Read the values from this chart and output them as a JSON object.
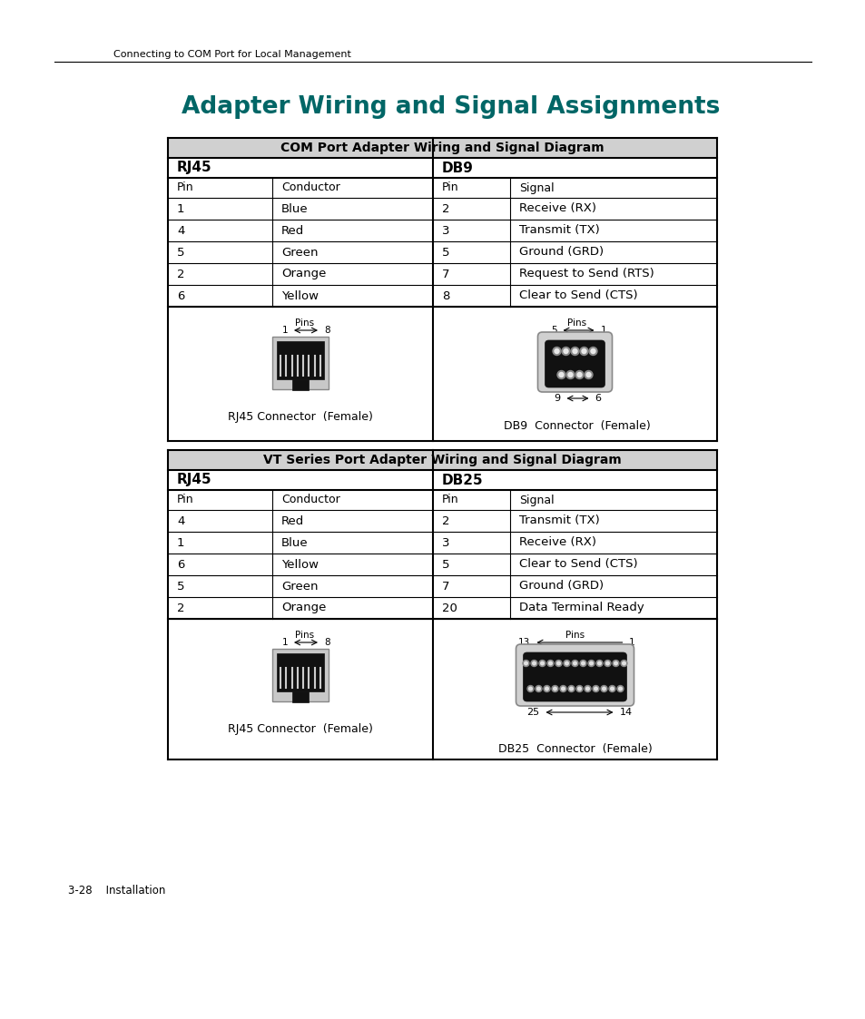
{
  "page_title": "Adapter Wiring and Signal Assignments",
  "header_text": "Connecting to COM Port for Local Management",
  "footer_text": "3-28    Installation",
  "bg_color": "#ffffff",
  "title_color": "#006666",
  "table_header_bg": "#d3d3d3",
  "table1": {
    "header": "COM Port Adapter Wiring and Signal Diagram",
    "rj45_header": "RJ45",
    "db_header": "DB9",
    "col_headers": [
      "Pin",
      "Conductor",
      "Pin",
      "Signal"
    ],
    "rows": [
      [
        "1",
        "Blue",
        "2",
        "Receive (RX)"
      ],
      [
        "4",
        "Red",
        "3",
        "Transmit (TX)"
      ],
      [
        "5",
        "Green",
        "5",
        "Ground (GRD)"
      ],
      [
        "2",
        "Orange",
        "7",
        "Request to Send (RTS)"
      ],
      [
        "6",
        "Yellow",
        "8",
        "Clear to Send (CTS)"
      ]
    ],
    "connector1_label": "RJ45 Connector  (Female)",
    "connector2_label": "DB9  Connector  (Female)",
    "db9_bottom_label": "9 ↔ 6"
  },
  "table2": {
    "header": "VT Series Port Adapter Wiring and Signal Diagram",
    "rj45_header": "RJ45",
    "db_header": "DB25",
    "col_headers": [
      "Pin",
      "Conductor",
      "Pin",
      "Signal"
    ],
    "rows": [
      [
        "4",
        "Red",
        "2",
        "Transmit (TX)"
      ],
      [
        "1",
        "Blue",
        "3",
        "Receive (RX)"
      ],
      [
        "6",
        "Yellow",
        "5",
        "Clear to Send (CTS)"
      ],
      [
        "5",
        "Green",
        "7",
        "Ground (GRD)"
      ],
      [
        "2",
        "Orange",
        "20",
        "Data Terminal Ready"
      ]
    ],
    "connector1_label": "RJ45 Connector  (Female)",
    "connector2_label": "DB25  Connector  (Female)"
  }
}
